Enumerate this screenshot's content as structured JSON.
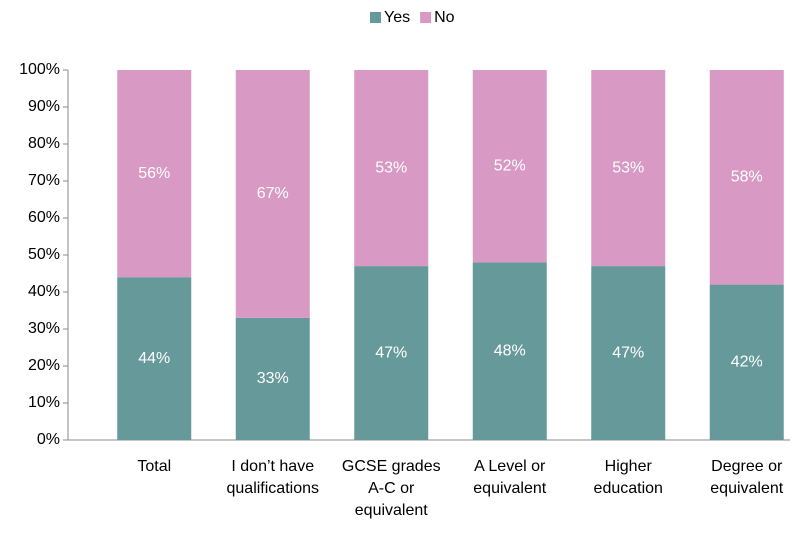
{
  "chart_data": {
    "type": "stacked_bar",
    "categories": [
      "Total",
      "I don’t have\nqualifications",
      "GCSE grades\nA-C or\nequivalent",
      "A Level or\nequivalent",
      "Higher\neducation",
      "Degree or\nequivalent"
    ],
    "series": [
      {
        "name": "Yes",
        "color": "#669999",
        "values": [
          44,
          33,
          47,
          48,
          47,
          42
        ],
        "value_labels": [
          "44%",
          "33%",
          "47%",
          "48%",
          "47%",
          "42%"
        ]
      },
      {
        "name": "No",
        "color": "#d899c4",
        "values": [
          56,
          67,
          53,
          52,
          53,
          58
        ],
        "value_labels": [
          "56%",
          "67%",
          "53%",
          "52%",
          "53%",
          "58%"
        ]
      }
    ],
    "ylim": [
      0,
      100
    ],
    "yticks": [
      {
        "value": 0,
        "label": "0%"
      },
      {
        "value": 10,
        "label": "10%"
      },
      {
        "value": 20,
        "label": "20%"
      },
      {
        "value": 30,
        "label": "30%"
      },
      {
        "value": 40,
        "label": "40%"
      },
      {
        "value": 50,
        "label": "50%"
      },
      {
        "value": 60,
        "label": "60%"
      },
      {
        "value": 70,
        "label": "70%"
      },
      {
        "value": 80,
        "label": "80%"
      },
      {
        "value": 90,
        "label": "90%"
      },
      {
        "value": 100,
        "label": "100%"
      }
    ],
    "legend": "top"
  }
}
